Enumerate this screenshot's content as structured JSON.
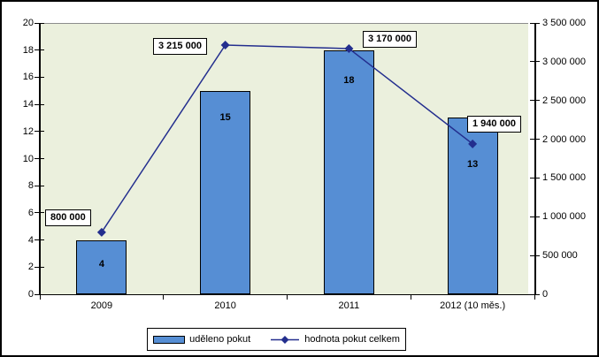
{
  "chart_data": {
    "type": "combo-bar-line",
    "title": "",
    "categories": [
      "2009",
      "2010",
      "2011",
      "2012 (10 měs.)"
    ],
    "series": [
      {
        "name": "uděleno pokut",
        "type": "bar",
        "axis": "left",
        "values": [
          4,
          15,
          18,
          13
        ],
        "data_labels": [
          "4",
          "15",
          "18",
          "13"
        ],
        "color": "#568ed4"
      },
      {
        "name": "hodnota pokut celkem",
        "type": "line",
        "axis": "right",
        "values": [
          800000,
          3215000,
          3170000,
          1940000
        ],
        "data_labels": [
          "800 000",
          "3 215 000",
          "3 170 000",
          "1 940 000"
        ],
        "color": "#232e8e"
      }
    ],
    "left_axis": {
      "min": 0,
      "max": 20,
      "step": 2,
      "tick_labels": [
        "0",
        "2",
        "4",
        "6",
        "8",
        "10",
        "12",
        "14",
        "16",
        "18",
        "20"
      ]
    },
    "right_axis": {
      "min": 0,
      "max": 3500000,
      "step": 500000,
      "tick_labels": [
        "0",
        "500 000",
        "1 000 000",
        "1 500 000",
        "2 000 000",
        "2 500 000",
        "3 000 000",
        "3 500 000"
      ]
    },
    "grid": "top-line-only",
    "legend_position": "bottom",
    "plot_background": "#ebf0dd"
  },
  "legend": {
    "items": [
      {
        "label": "uděleno pokut"
      },
      {
        "label": "hodnota pokut celkem"
      }
    ]
  },
  "colors": {
    "bar_fill": "#568ed4",
    "line": "#232e8e",
    "plot_bg": "#ebf0dd",
    "gridline": "#8c8c8c"
  }
}
